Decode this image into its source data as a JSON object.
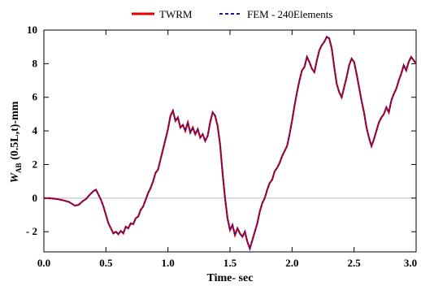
{
  "chart_data": {
    "type": "line",
    "xlabel": "Time- sec",
    "ylabel": {
      "main": "W",
      "subscript": "AB",
      "rest": "(0.5L,t)-mm"
    },
    "xlim": [
      0.0,
      3.0
    ],
    "ylim": [
      -3.2,
      10.0
    ],
    "x_ticks": [
      0.0,
      0.5,
      1.0,
      1.5,
      2.0,
      2.5,
      3.0
    ],
    "x_tick_labels": [
      "0.0",
      "0.5",
      "1.0",
      "1.5",
      "2.0",
      "2.5",
      "3.0"
    ],
    "y_ticks": [
      -2,
      0,
      2,
      4,
      6,
      8,
      10
    ],
    "y_tick_labels": [
      "- 2",
      "0",
      "2",
      "4",
      "6",
      "8",
      "10"
    ],
    "legend_position": "top-center",
    "zero_line": true,
    "grid": false,
    "series": [
      {
        "name": "TWRM",
        "color": "#e00000",
        "style": "solid",
        "points": [
          [
            0.0,
            0.0
          ],
          [
            0.05,
            -0.01
          ],
          [
            0.1,
            -0.05
          ],
          [
            0.15,
            -0.12
          ],
          [
            0.2,
            -0.22
          ],
          [
            0.25,
            -0.45
          ],
          [
            0.28,
            -0.4
          ],
          [
            0.31,
            -0.2
          ],
          [
            0.34,
            -0.05
          ],
          [
            0.37,
            0.2
          ],
          [
            0.4,
            0.42
          ],
          [
            0.42,
            0.5
          ],
          [
            0.44,
            0.2
          ],
          [
            0.46,
            -0.1
          ],
          [
            0.48,
            -0.5
          ],
          [
            0.5,
            -1.0
          ],
          [
            0.52,
            -1.5
          ],
          [
            0.54,
            -1.8
          ],
          [
            0.56,
            -2.1
          ],
          [
            0.58,
            -2.0
          ],
          [
            0.6,
            -2.15
          ],
          [
            0.62,
            -1.95
          ],
          [
            0.64,
            -2.1
          ],
          [
            0.66,
            -1.7
          ],
          [
            0.68,
            -1.8
          ],
          [
            0.7,
            -1.5
          ],
          [
            0.72,
            -1.55
          ],
          [
            0.74,
            -1.2
          ],
          [
            0.76,
            -1.1
          ],
          [
            0.78,
            -0.7
          ],
          [
            0.8,
            -0.5
          ],
          [
            0.82,
            -0.1
          ],
          [
            0.84,
            0.3
          ],
          [
            0.86,
            0.6
          ],
          [
            0.88,
            1.0
          ],
          [
            0.9,
            1.5
          ],
          [
            0.92,
            1.7
          ],
          [
            0.94,
            2.3
          ],
          [
            0.96,
            2.9
          ],
          [
            0.98,
            3.5
          ],
          [
            1.0,
            4.1
          ],
          [
            1.02,
            4.9
          ],
          [
            1.04,
            5.2
          ],
          [
            1.06,
            4.6
          ],
          [
            1.08,
            4.8
          ],
          [
            1.1,
            4.2
          ],
          [
            1.12,
            4.35
          ],
          [
            1.14,
            4.0
          ],
          [
            1.16,
            4.5
          ],
          [
            1.18,
            3.9
          ],
          [
            1.2,
            4.2
          ],
          [
            1.22,
            3.8
          ],
          [
            1.24,
            4.1
          ],
          [
            1.26,
            3.6
          ],
          [
            1.28,
            3.8
          ],
          [
            1.3,
            3.4
          ],
          [
            1.32,
            3.7
          ],
          [
            1.34,
            4.5
          ],
          [
            1.36,
            5.1
          ],
          [
            1.38,
            4.9
          ],
          [
            1.4,
            4.3
          ],
          [
            1.42,
            3.2
          ],
          [
            1.44,
            1.5
          ],
          [
            1.46,
            0.0
          ],
          [
            1.48,
            -1.2
          ],
          [
            1.5,
            -1.9
          ],
          [
            1.52,
            -1.6
          ],
          [
            1.54,
            -2.2
          ],
          [
            1.56,
            -1.8
          ],
          [
            1.58,
            -2.1
          ],
          [
            1.6,
            -2.3
          ],
          [
            1.62,
            -2.0
          ],
          [
            1.64,
            -2.6
          ],
          [
            1.66,
            -3.0
          ],
          [
            1.68,
            -2.5
          ],
          [
            1.7,
            -2.0
          ],
          [
            1.72,
            -1.5
          ],
          [
            1.74,
            -0.8
          ],
          [
            1.76,
            -0.3
          ],
          [
            1.78,
            0.0
          ],
          [
            1.8,
            0.5
          ],
          [
            1.82,
            0.9
          ],
          [
            1.84,
            1.1
          ],
          [
            1.86,
            1.6
          ],
          [
            1.88,
            1.8
          ],
          [
            1.9,
            2.1
          ],
          [
            1.92,
            2.5
          ],
          [
            1.94,
            2.8
          ],
          [
            1.96,
            3.1
          ],
          [
            1.98,
            3.8
          ],
          [
            2.0,
            4.6
          ],
          [
            2.02,
            5.5
          ],
          [
            2.04,
            6.3
          ],
          [
            2.06,
            7.0
          ],
          [
            2.08,
            7.6
          ],
          [
            2.1,
            7.8
          ],
          [
            2.12,
            8.4
          ],
          [
            2.14,
            8.1
          ],
          [
            2.16,
            7.7
          ],
          [
            2.18,
            7.5
          ],
          [
            2.2,
            8.2
          ],
          [
            2.22,
            8.8
          ],
          [
            2.24,
            9.1
          ],
          [
            2.26,
            9.3
          ],
          [
            2.28,
            9.6
          ],
          [
            2.3,
            9.5
          ],
          [
            2.32,
            8.9
          ],
          [
            2.34,
            7.8
          ],
          [
            2.36,
            6.8
          ],
          [
            2.38,
            6.3
          ],
          [
            2.4,
            6.0
          ],
          [
            2.42,
            6.6
          ],
          [
            2.44,
            7.2
          ],
          [
            2.46,
            7.9
          ],
          [
            2.48,
            8.3
          ],
          [
            2.5,
            8.1
          ],
          [
            2.52,
            7.4
          ],
          [
            2.54,
            6.6
          ],
          [
            2.56,
            5.8
          ],
          [
            2.58,
            5.1
          ],
          [
            2.6,
            4.2
          ],
          [
            2.62,
            3.6
          ],
          [
            2.64,
            3.1
          ],
          [
            2.66,
            3.5
          ],
          [
            2.68,
            4.0
          ],
          [
            2.7,
            4.5
          ],
          [
            2.72,
            4.8
          ],
          [
            2.74,
            5.0
          ],
          [
            2.76,
            5.4
          ],
          [
            2.78,
            5.1
          ],
          [
            2.8,
            5.8
          ],
          [
            2.82,
            6.2
          ],
          [
            2.84,
            6.5
          ],
          [
            2.86,
            7.0
          ],
          [
            2.88,
            7.4
          ],
          [
            2.9,
            7.9
          ],
          [
            2.92,
            7.6
          ],
          [
            2.94,
            8.1
          ],
          [
            2.96,
            8.4
          ],
          [
            2.98,
            8.2
          ],
          [
            3.0,
            8.0
          ]
        ]
      },
      {
        "name": "FEM - 240Elements",
        "color": "#1a1aa0",
        "style": "dashed",
        "same_as": "TWRM"
      }
    ]
  }
}
